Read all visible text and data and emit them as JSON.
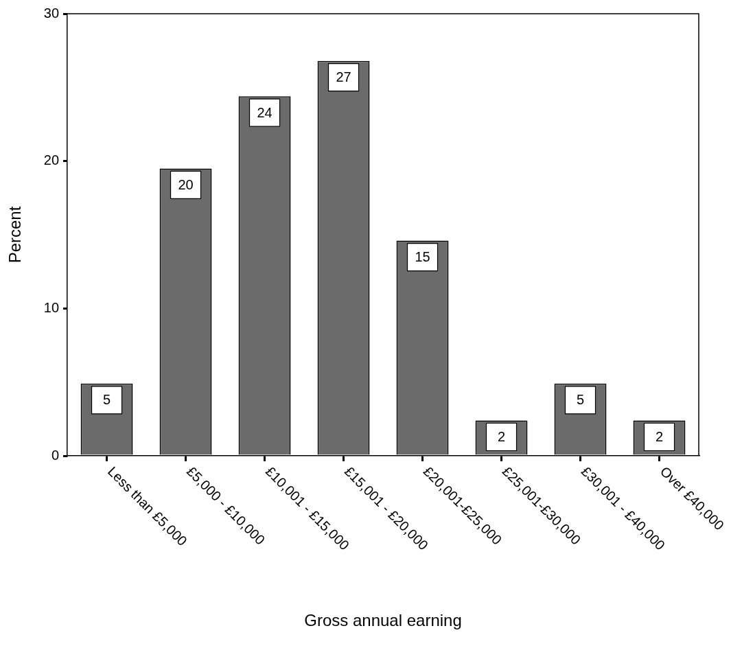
{
  "chart_data": {
    "type": "bar",
    "xlabel": "Gross annual earning",
    "ylabel": "Percent",
    "categories": [
      "Less than £5,000",
      "£5,000 - £10,000",
      "£10,001 - £15,000",
      "£15,001 - £20,000",
      "£20,001-£25,000",
      "£25,001-£30,000",
      "£30,001 - £40,000",
      "Over £40,000"
    ],
    "values": [
      4.9,
      19.5,
      24.4,
      26.8,
      14.6,
      2.4,
      4.9,
      2.4
    ],
    "value_labels": [
      "5",
      "20",
      "24",
      "27",
      "15",
      "2",
      "5",
      "2"
    ],
    "color": "#6b6b6b",
    "ylim": [
      0,
      30
    ],
    "yticks": [
      0,
      10,
      20,
      30
    ],
    "grid": false,
    "legend": false
  }
}
